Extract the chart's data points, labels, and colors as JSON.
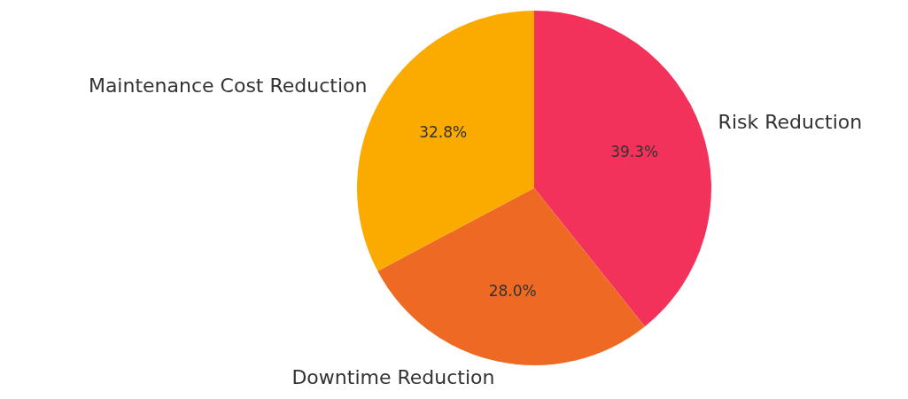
{
  "chart_data": {
    "type": "pie",
    "categories": [
      "Risk Reduction",
      "Downtime Reduction",
      "Maintenance Cost Reduction"
    ],
    "values": [
      39.3,
      28.0,
      32.8
    ],
    "colors": [
      "#f2325a",
      "#ee6a24",
      "#fbab00"
    ],
    "value_labels": [
      "39.3%",
      "28.0%",
      "32.8%"
    ],
    "legend": false
  }
}
